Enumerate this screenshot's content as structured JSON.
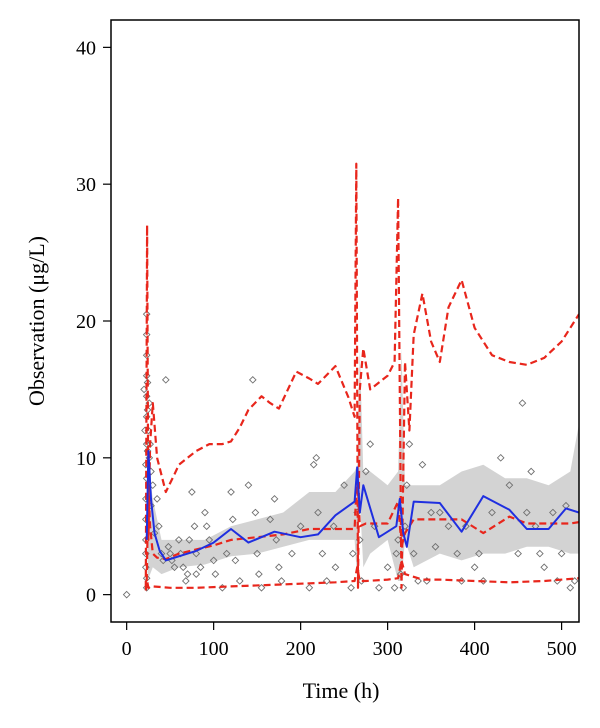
{
  "chart_data": {
    "type": "line",
    "xlabel": "Time (h)",
    "ylabel": "Observation (μg/L)",
    "xlim": [
      -18,
      520
    ],
    "ylim": [
      -2,
      42
    ],
    "xticks": [
      0,
      100,
      200,
      300,
      400,
      500
    ],
    "yticks": [
      0,
      10,
      20,
      30,
      40
    ],
    "grid": false,
    "colors": {
      "band": "#d3d3d3",
      "median": "#1f2fe0",
      "percentiles": "#e8261c",
      "points": "#707070"
    },
    "band": {
      "x": [
        24,
        30,
        40,
        60,
        90,
        120,
        150,
        180,
        210,
        240,
        262,
        265,
        268,
        272,
        280,
        300,
        312,
        316,
        320,
        330,
        360,
        385,
        410,
        435,
        460,
        485,
        510,
        520
      ],
      "lower": [
        1,
        2,
        1.5,
        2,
        2.2,
        2.8,
        3,
        3.5,
        4,
        4,
        4,
        1,
        7,
        2,
        3,
        4,
        1,
        1,
        4,
        2,
        3,
        2.5,
        3,
        3,
        3.5,
        3.5,
        3,
        3
      ],
      "upper": [
        10,
        7,
        4,
        4,
        4,
        5,
        5.5,
        6,
        7.5,
        7.5,
        9,
        9.5,
        18,
        9,
        9,
        8,
        9,
        18,
        8,
        8,
        8,
        9,
        9.5,
        8.5,
        8.5,
        8,
        9,
        12.5
      ]
    },
    "series": [
      {
        "name": "median",
        "style": "solid",
        "x": [
          23,
          25,
          28,
          32,
          38,
          45,
          60,
          80,
          100,
          120,
          140,
          170,
          200,
          220,
          240,
          262,
          265,
          268,
          272,
          290,
          310,
          314,
          318,
          322,
          330,
          360,
          385,
          410,
          440,
          460,
          485,
          505,
          520
        ],
        "y": [
          4,
          10.5,
          7,
          4.5,
          3.2,
          2.5,
          2.8,
          3.2,
          3.8,
          4.8,
          3.8,
          4.6,
          4.2,
          4.4,
          5.8,
          6.8,
          9.3,
          6,
          8,
          4.2,
          5,
          7,
          4.5,
          3.5,
          6.8,
          6.7,
          4.6,
          7.2,
          6.2,
          4.8,
          4.8,
          6.3,
          6
        ]
      },
      {
        "name": "upper percentile",
        "style": "dashed",
        "x": [
          22,
          23.5,
          25,
          27,
          30,
          35,
          45,
          55,
          60,
          70,
          80,
          95,
          110,
          120,
          130,
          140,
          155,
          165,
          175,
          195,
          210,
          220,
          240,
          255,
          262,
          264,
          266,
          268,
          272,
          280,
          300,
          308,
          312,
          316,
          320,
          325,
          330,
          340,
          350,
          360,
          370,
          385,
          400,
          420,
          440,
          460,
          480,
          500,
          520
        ],
        "y": [
          0.5,
          27,
          4,
          11,
          14,
          10,
          7.5,
          8.8,
          9.5,
          10,
          10.5,
          11,
          11,
          11.2,
          12.2,
          13.5,
          14.5,
          14,
          13.6,
          16.3,
          15.8,
          15.4,
          16.7,
          14.4,
          13,
          31.5,
          0.5,
          15,
          18,
          15,
          16,
          17,
          29,
          0.5,
          17,
          12,
          19,
          22,
          18.5,
          17,
          21,
          23,
          19.5,
          17.5,
          17,
          16.8,
          17.3,
          18.5,
          20.5
        ]
      },
      {
        "name": "middle percentile",
        "style": "dashed",
        "x": [
          23,
          25,
          27,
          30,
          35,
          45,
          60,
          80,
          100,
          120,
          150,
          180,
          210,
          240,
          262,
          265,
          268,
          275,
          300,
          312,
          316,
          320,
          330,
          360,
          385,
          410,
          440,
          460,
          485,
          510,
          520
        ],
        "y": [
          1,
          8,
          5,
          3,
          2.7,
          2.6,
          3,
          3.3,
          3.6,
          4,
          4.2,
          4.4,
          4.8,
          4.8,
          4.8,
          9,
          5,
          5.2,
          5.2,
          6.8,
          3.5,
          4.5,
          5.5,
          5.5,
          5.5,
          4.5,
          5.7,
          5.2,
          5.2,
          5.2,
          5.3
        ]
      },
      {
        "name": "lower percentile",
        "style": "dashed",
        "x": [
          22,
          23.5,
          25,
          30,
          50,
          80,
          120,
          160,
          200,
          240,
          262,
          265,
          268,
          275,
          300,
          312,
          316,
          320,
          340,
          360,
          400,
          440,
          480,
          520
        ],
        "y": [
          0.3,
          1,
          0.5,
          0.6,
          0.5,
          0.5,
          0.6,
          0.7,
          0.8,
          0.9,
          1,
          2,
          1,
          1,
          1.1,
          1.2,
          2.5,
          1.5,
          1.1,
          1.1,
          1,
          0.9,
          1,
          1.2
        ]
      }
    ],
    "observations": [
      [
        0,
        0
      ],
      [
        20,
        15
      ],
      [
        21,
        12
      ],
      [
        22,
        9.5
      ],
      [
        22,
        7
      ],
      [
        22,
        5.5
      ],
      [
        22,
        4
      ],
      [
        22,
        3
      ],
      [
        22,
        2
      ],
      [
        23,
        20.5
      ],
      [
        23,
        19
      ],
      [
        23,
        17.5
      ],
      [
        23,
        16
      ],
      [
        23,
        14.5
      ],
      [
        23,
        13
      ],
      [
        23,
        11
      ],
      [
        23,
        8.5
      ],
      [
        23,
        1.2
      ],
      [
        23,
        0.5
      ],
      [
        24,
        15.5
      ],
      [
        24,
        13.5
      ],
      [
        24,
        10.5
      ],
      [
        25,
        12
      ],
      [
        25,
        7
      ],
      [
        26,
        14
      ],
      [
        26,
        10
      ],
      [
        27,
        11
      ],
      [
        28,
        6.5
      ],
      [
        28,
        9
      ],
      [
        30,
        8
      ],
      [
        32,
        4.5
      ],
      [
        35,
        7
      ],
      [
        37,
        5
      ],
      [
        40,
        3
      ],
      [
        42,
        2.5
      ],
      [
        45,
        15.7
      ],
      [
        48,
        3.5
      ],
      [
        50,
        3
      ],
      [
        52,
        2.5
      ],
      [
        55,
        2
      ],
      [
        60,
        4
      ],
      [
        62,
        3
      ],
      [
        65,
        2
      ],
      [
        68,
        1
      ],
      [
        70,
        1.5
      ],
      [
        72,
        4
      ],
      [
        75,
        7.5
      ],
      [
        78,
        5
      ],
      [
        80,
        3
      ],
      [
        80,
        1.5
      ],
      [
        85,
        2
      ],
      [
        90,
        6
      ],
      [
        92,
        5
      ],
      [
        95,
        4
      ],
      [
        100,
        2.5
      ],
      [
        102,
        1.5
      ],
      [
        110,
        0.5
      ],
      [
        115,
        3
      ],
      [
        120,
        7.5
      ],
      [
        122,
        5.5
      ],
      [
        125,
        2.5
      ],
      [
        130,
        1
      ],
      [
        140,
        8
      ],
      [
        145,
        15.7
      ],
      [
        148,
        6
      ],
      [
        150,
        3
      ],
      [
        152,
        1.5
      ],
      [
        155,
        0.5
      ],
      [
        165,
        5.5
      ],
      [
        170,
        7
      ],
      [
        172,
        4
      ],
      [
        175,
        2
      ],
      [
        178,
        1
      ],
      [
        190,
        3
      ],
      [
        200,
        5
      ],
      [
        210,
        0.5
      ],
      [
        215,
        9.5
      ],
      [
        218,
        10
      ],
      [
        220,
        6
      ],
      [
        225,
        3
      ],
      [
        230,
        1
      ],
      [
        238,
        5
      ],
      [
        240,
        2
      ],
      [
        250,
        8
      ],
      [
        258,
        0.5
      ],
      [
        260,
        3
      ],
      [
        265,
        6
      ],
      [
        268,
        4
      ],
      [
        270,
        1
      ],
      [
        275,
        9
      ],
      [
        280,
        11
      ],
      [
        285,
        5
      ],
      [
        290,
        0.5
      ],
      [
        300,
        2
      ],
      [
        308,
        0.5
      ],
      [
        310,
        3
      ],
      [
        312,
        4
      ],
      [
        315,
        1.5
      ],
      [
        318,
        0.5
      ],
      [
        320,
        5
      ],
      [
        322,
        8
      ],
      [
        325,
        11
      ],
      [
        330,
        3
      ],
      [
        335,
        1
      ],
      [
        340,
        9.5
      ],
      [
        345,
        1
      ],
      [
        350,
        6
      ],
      [
        355,
        3.5
      ],
      [
        360,
        6
      ],
      [
        370,
        5
      ],
      [
        380,
        3
      ],
      [
        385,
        1
      ],
      [
        390,
        5
      ],
      [
        400,
        2
      ],
      [
        405,
        3
      ],
      [
        410,
        1
      ],
      [
        420,
        6
      ],
      [
        430,
        10
      ],
      [
        440,
        8
      ],
      [
        450,
        3
      ],
      [
        455,
        14
      ],
      [
        460,
        6
      ],
      [
        465,
        9
      ],
      [
        470,
        5
      ],
      [
        475,
        3
      ],
      [
        480,
        2
      ],
      [
        490,
        6
      ],
      [
        495,
        1
      ],
      [
        500,
        3
      ],
      [
        505,
        6.5
      ],
      [
        510,
        0.5
      ],
      [
        515,
        1
      ]
    ]
  }
}
